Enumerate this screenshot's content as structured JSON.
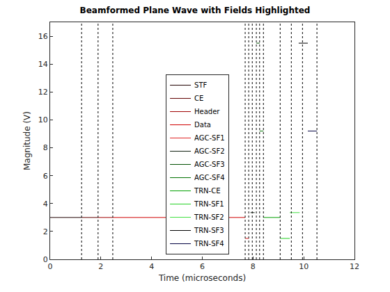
{
  "chart_data": {
    "type": "line",
    "title": "Beamformed Plane Wave with Fields Highlighted",
    "x_label": "Time (microseconds)",
    "y_label": "Magnitude (V)",
    "xlim": [
      0,
      12
    ],
    "xticks": [
      0,
      2,
      4,
      6,
      8,
      10,
      12
    ],
    "ylim": [
      0,
      17
    ],
    "yticks": [
      0,
      2,
      4,
      6,
      8,
      10,
      12,
      14,
      16
    ],
    "grid": false,
    "legend": "center",
    "boundaries": [
      1.24,
      1.89,
      2.47,
      7.69,
      7.83,
      7.97,
      8.13,
      8.26,
      8.41,
      9.07,
      9.51,
      9.95,
      10.52
    ],
    "boundary_line_style": "dotted",
    "series": [
      {
        "name": "STF",
        "color": "#200000",
        "x": [
          0,
          1.24
        ],
        "values": [
          3,
          3
        ]
      },
      {
        "name": "CE",
        "color": "#600000",
        "x": [
          1.24,
          1.89
        ],
        "values": [
          3,
          3
        ]
      },
      {
        "name": "Header",
        "color": "#a00000",
        "x": [
          1.89,
          2.47
        ],
        "values": [
          3,
          3
        ]
      },
      {
        "name": "Data",
        "color": "#d00000",
        "x": [
          2.47,
          7.69
        ],
        "values": [
          3,
          3
        ]
      },
      {
        "name": "AGC-SF1",
        "color": "#e02020",
        "x": [
          7.69,
          7.83
        ],
        "values": [
          1.5,
          1.5
        ]
      },
      {
        "name": "AGC-SF2",
        "color": "#102010",
        "x": [
          7.9,
          8.06
        ],
        "values": [
          3.35,
          3.35
        ]
      },
      {
        "name": "AGC-SF3",
        "color": "#005000",
        "x": [
          8.13,
          8.26
        ],
        "values": [
          15.5,
          15.5
        ]
      },
      {
        "name": "AGC-SF4",
        "color": "#007000",
        "x": [
          8.26,
          8.41
        ],
        "values": [
          9.2,
          9.2
        ]
      },
      {
        "name": "TRN-CE",
        "color": "#00a000",
        "x": [
          8.41,
          9.07
        ],
        "values": [
          3,
          3
        ]
      },
      {
        "name": "TRN-SF1",
        "color": "#20d020",
        "x": [
          9.07,
          9.45
        ],
        "values": [
          1.5,
          1.5
        ]
      },
      {
        "name": "TRN-SF2",
        "color": "#40e040",
        "x": [
          9.45,
          9.84
        ],
        "values": [
          3.35,
          3.35
        ]
      },
      {
        "name": "TRN-SF3",
        "color": "#000000",
        "x": [
          9.8,
          10.16
        ],
        "values": [
          15.5,
          15.5
        ]
      },
      {
        "name": "TRN-SF4",
        "color": "#000040",
        "x": [
          10.16,
          10.52
        ],
        "values": [
          9.2,
          9.2
        ]
      }
    ]
  }
}
